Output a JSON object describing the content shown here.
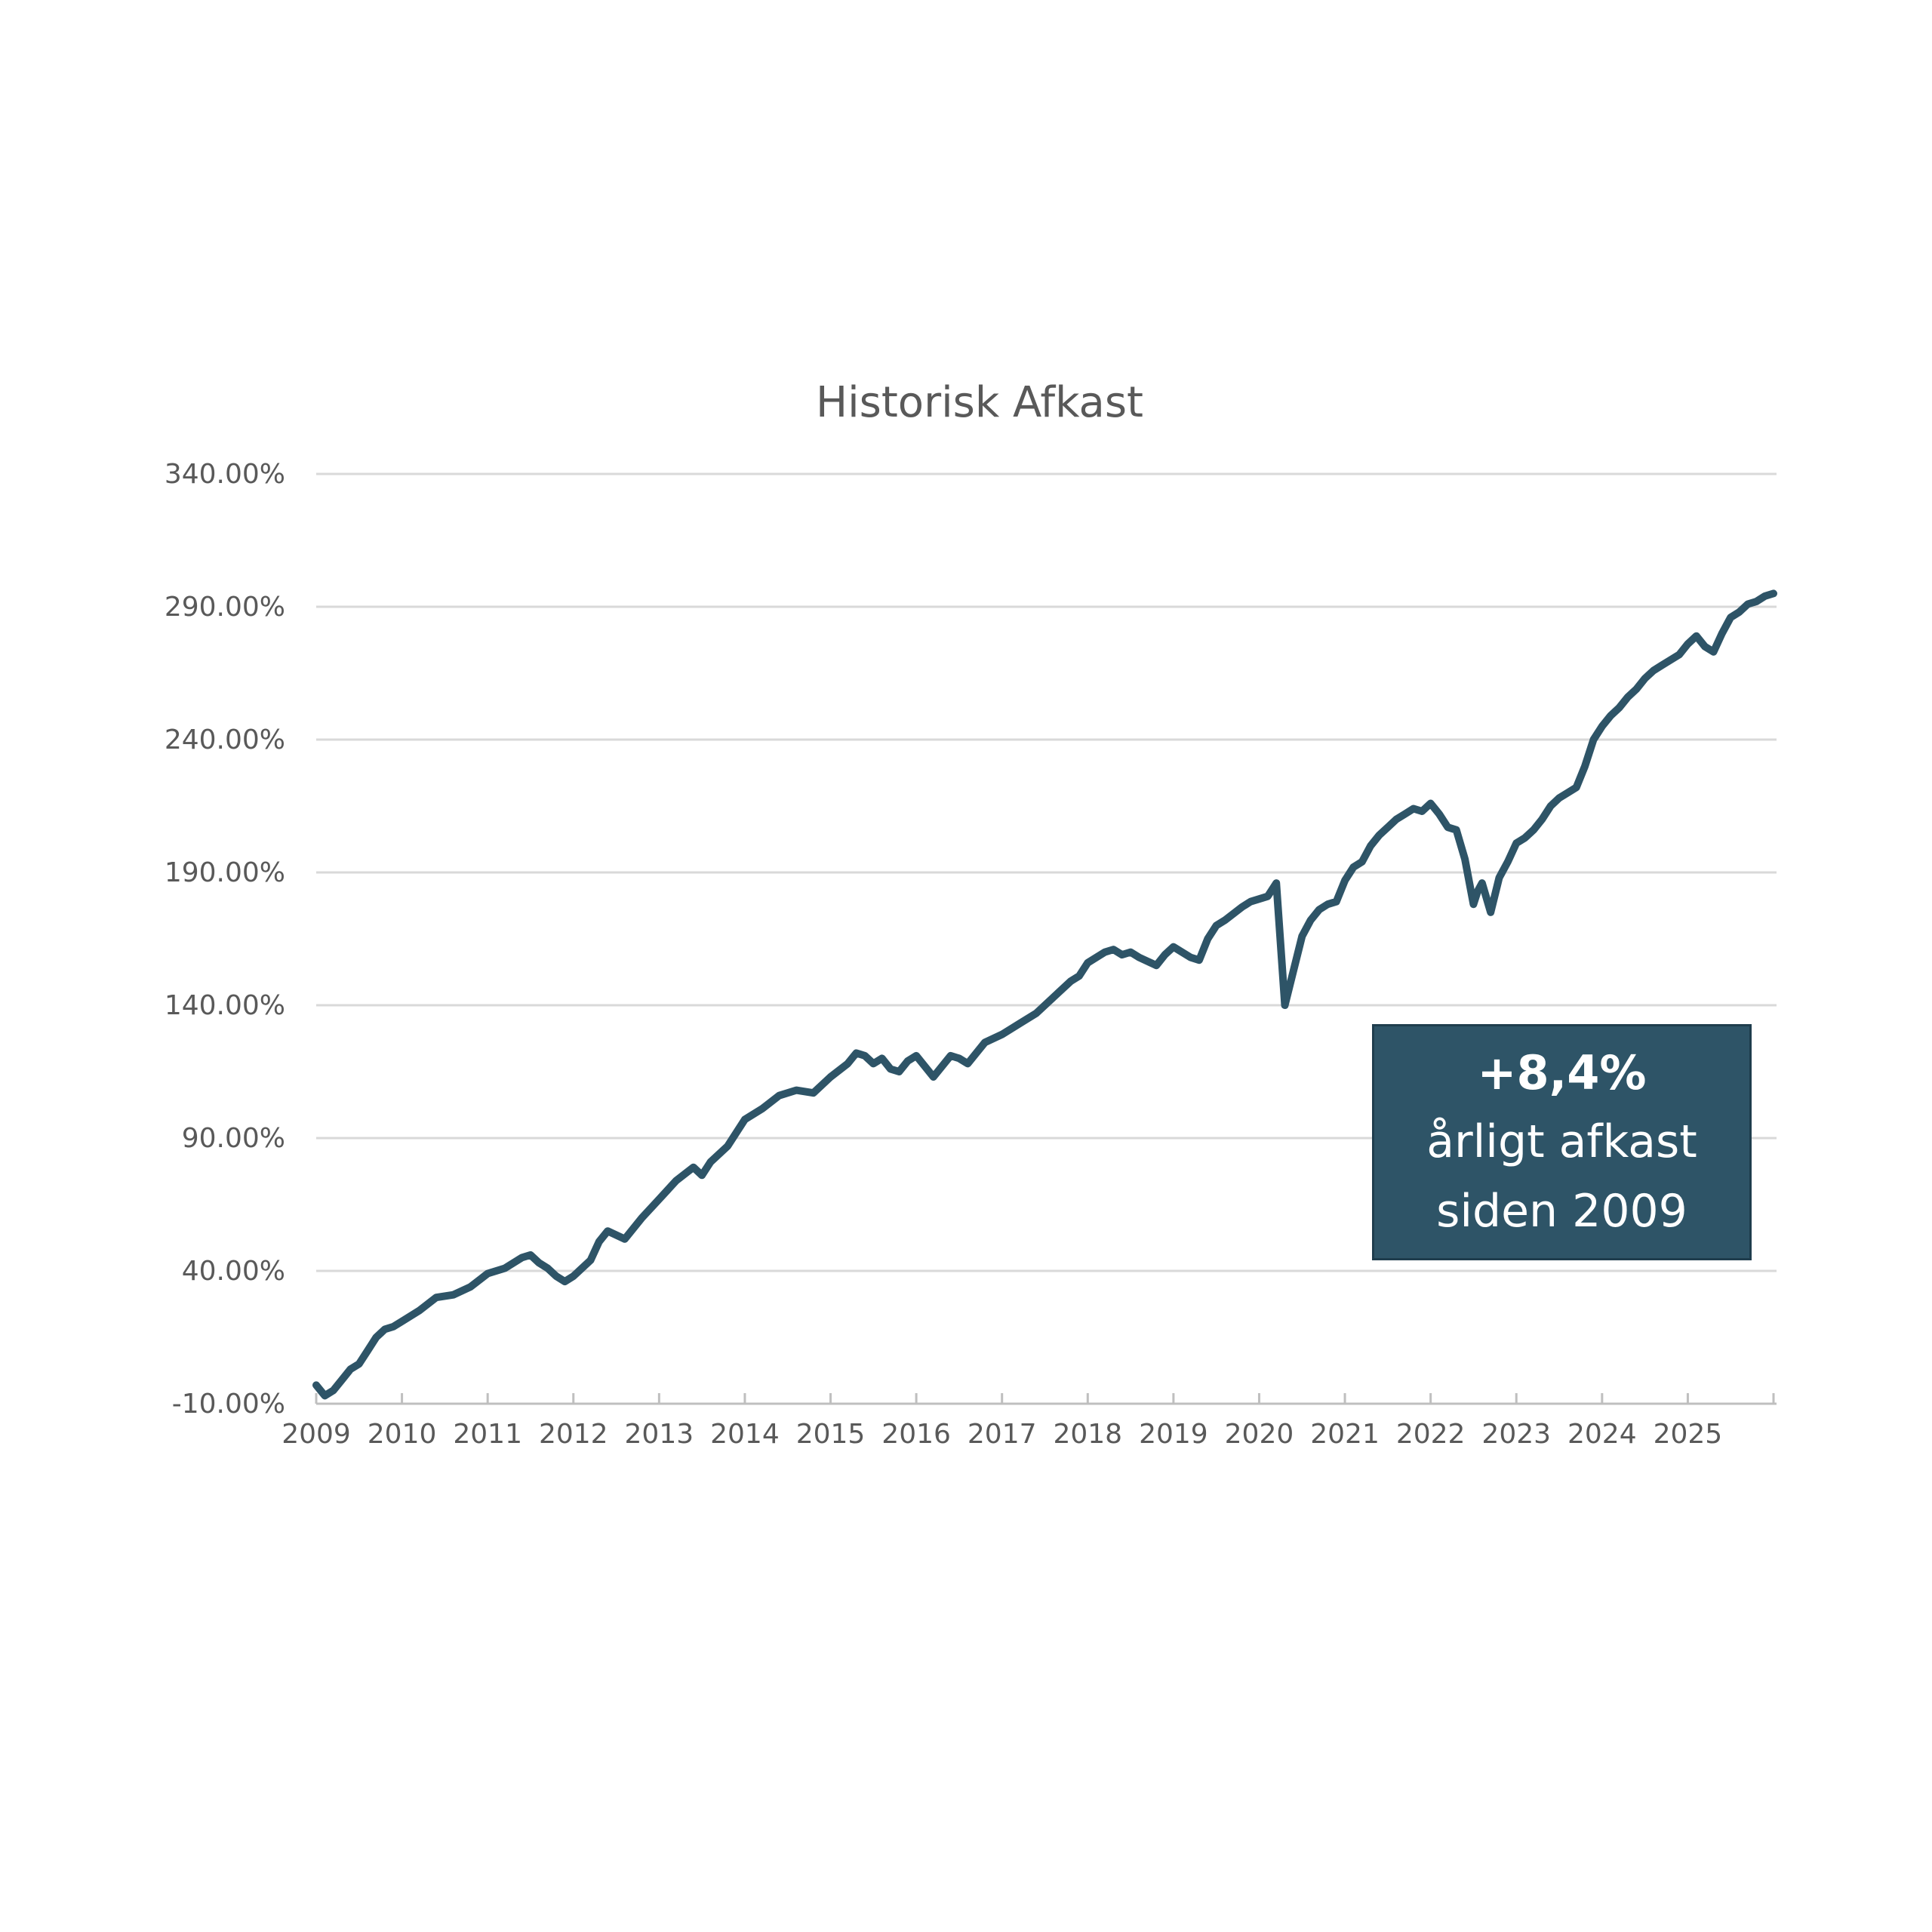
{
  "colors": {
    "line": "#2e5467",
    "callout_bg": "#2e5467",
    "grid": "#d9d9d9",
    "text": "#595959",
    "background": "#ffffff"
  },
  "callout": {
    "value": "+8,4%",
    "line1": "årligt afkast",
    "line2": "siden 2009"
  },
  "chart_data": {
    "type": "line",
    "title": "Historisk Afkast",
    "xlabel": "",
    "ylabel": "",
    "ylim": [
      -10,
      340
    ],
    "y_ticks": [
      -10,
      40,
      90,
      140,
      190,
      240,
      290,
      340
    ],
    "y_tick_labels": [
      "-10.00%",
      "40.00%",
      "90.00%",
      "140.00%",
      "190.00%",
      "240.00%",
      "290.00%",
      "340.00%"
    ],
    "x_tick_labels": [
      "2009",
      "2010",
      "2011",
      "2012",
      "2013",
      "2014",
      "2015",
      "2016",
      "2017",
      "2018",
      "2019",
      "2020",
      "2021",
      "2022",
      "2023",
      "2024",
      "2025"
    ],
    "x_range": [
      2009,
      2026
    ],
    "grid": true,
    "legend": "none",
    "series": [
      {
        "x": [
          2009.0,
          2009.1,
          2009.2,
          2009.3,
          2009.4,
          2009.5,
          2009.6,
          2009.7,
          2009.8,
          2009.9,
          2010.0,
          2010.2,
          2010.4,
          2010.6,
          2010.8,
          2011.0,
          2011.2,
          2011.4,
          2011.5,
          2011.6,
          2011.7,
          2011.8,
          2011.9,
          2012.0,
          2012.2,
          2012.3,
          2012.4,
          2012.6,
          2012.8,
          2013.0,
          2013.2,
          2013.4,
          2013.5,
          2013.6,
          2013.8,
          2014.0,
          2014.2,
          2014.4,
          2014.6,
          2014.8,
          2015.0,
          2015.2,
          2015.3,
          2015.4,
          2015.5,
          2015.6,
          2015.7,
          2015.8,
          2015.9,
          2016.0,
          2016.1,
          2016.2,
          2016.4,
          2016.5,
          2016.6,
          2016.8,
          2017.0,
          2017.2,
          2017.4,
          2017.5,
          2017.6,
          2017.8,
          2017.9,
          2018.0,
          2018.1,
          2018.2,
          2018.3,
          2018.4,
          2018.5,
          2018.6,
          2018.8,
          2018.9,
          2019.0,
          2019.1,
          2019.2,
          2019.3,
          2019.4,
          2019.5,
          2019.6,
          2019.8,
          2019.9,
          2020.0,
          2020.1,
          2020.2,
          2020.3,
          2020.4,
          2020.5,
          2020.6,
          2020.7,
          2020.8,
          2020.9,
          2021.0,
          2021.1,
          2021.2,
          2021.3,
          2021.4,
          2021.5,
          2021.6,
          2021.7,
          2021.8,
          2021.9,
          2022.0,
          2022.1,
          2022.2,
          2022.3,
          2022.4,
          2022.5,
          2022.55,
          2022.6,
          2022.7,
          2022.8,
          2022.9,
          2023.0,
          2023.1,
          2023.2,
          2023.3,
          2023.4,
          2023.5,
          2023.6,
          2023.7,
          2023.8,
          2023.9,
          2024.0,
          2024.1,
          2024.2,
          2024.3,
          2024.4,
          2024.5,
          2024.6,
          2024.7,
          2024.8,
          2024.9,
          2025.0,
          2025.1,
          2025.2,
          2025.3,
          2025.4,
          2025.5,
          2025.6,
          2025.7,
          2025.8,
          2025.9,
          2026.0
        ],
        "y": [
          -3,
          -7,
          -5,
          -1,
          3,
          5,
          10,
          15,
          18,
          19,
          21,
          25,
          30,
          31,
          34,
          39,
          41,
          45,
          46,
          43,
          41,
          38,
          36,
          38,
          44,
          51,
          55,
          52,
          60,
          67,
          74,
          79,
          76,
          81,
          87,
          97,
          101,
          106,
          108,
          107,
          113,
          118,
          122,
          121,
          118,
          120,
          116,
          115,
          119,
          121,
          117,
          113,
          121,
          120,
          118,
          126,
          129,
          133,
          137,
          140,
          143,
          149,
          151,
          156,
          158,
          160,
          161,
          159,
          160,
          158,
          155,
          159,
          162,
          160,
          158,
          157,
          165,
          170,
          172,
          177,
          179,
          180,
          181,
          186,
          140,
          153,
          166,
          172,
          176,
          178,
          179,
          187,
          192,
          194,
          200,
          204,
          207,
          210,
          212,
          214,
          213,
          216,
          212,
          207,
          206,
          195,
          178,
          183,
          186,
          175,
          188,
          194,
          201,
          203,
          206,
          210,
          215,
          218,
          220,
          222,
          230,
          240,
          245,
          249,
          252,
          256,
          259,
          263,
          266,
          268,
          270,
          272,
          276,
          279,
          275,
          273,
          280,
          286,
          288,
          291,
          292,
          294,
          295
        ]
      }
    ],
    "annotations": [
      "+8,4%",
      "årligt afkast",
      "siden 2009"
    ]
  }
}
